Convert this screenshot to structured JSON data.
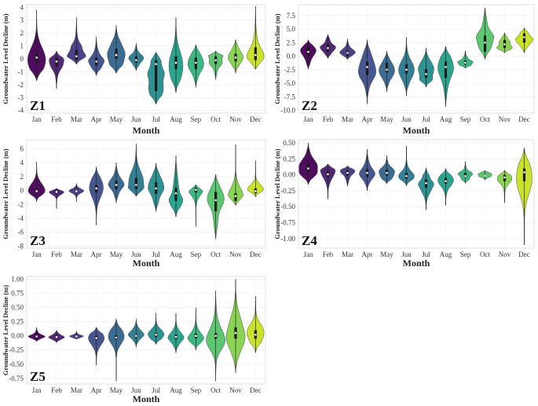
{
  "chart_data": [
    {
      "type": "violin",
      "zone": "Z1",
      "xlabel": "Month",
      "ylabel": "Groundwater Level Decline (m)",
      "categories": [
        "Jan",
        "Feb",
        "Mar",
        "Apr",
        "May",
        "Jun",
        "Jul",
        "Aug",
        "Sep",
        "Oct",
        "Nov",
        "Dec"
      ],
      "yticks": [
        "-4",
        "-3",
        "-2",
        "-1",
        "0",
        "1",
        "2",
        "3",
        "4"
      ],
      "ylim": [
        -4.2,
        4.2
      ],
      "series": [
        {
          "month": "Jan",
          "min": -1.7,
          "max": 3.8,
          "median": 0.1,
          "q1": -0.3,
          "q3": 0.4,
          "width": 0.9
        },
        {
          "month": "Feb",
          "min": -2.3,
          "max": 0.6,
          "median": -0.2,
          "q1": -0.6,
          "q3": 0.1,
          "width": 0.75
        },
        {
          "month": "Mar",
          "min": -0.4,
          "max": 3.2,
          "median": 0.2,
          "q1": -0.1,
          "q3": 0.7,
          "width": 0.95
        },
        {
          "month": "Apr",
          "min": -1.3,
          "max": 1.7,
          "median": -0.2,
          "q1": -0.5,
          "q3": 0.1,
          "width": 0.8
        },
        {
          "month": "May",
          "min": -1.1,
          "max": 2.6,
          "median": 0.3,
          "q1": 0.0,
          "q3": 0.8,
          "width": 0.9
        },
        {
          "month": "Jun",
          "min": -0.9,
          "max": 1.2,
          "median": -0.1,
          "q1": -0.3,
          "q3": 0.2,
          "width": 0.75
        },
        {
          "month": "Jul",
          "min": -3.5,
          "max": 0.5,
          "median": -0.4,
          "q1": -2.5,
          "q3": -0.1,
          "width": 0.85
        },
        {
          "month": "Aug",
          "min": -2.6,
          "max": 3.2,
          "median": -0.3,
          "q1": -0.8,
          "q3": 0.2,
          "width": 0.7
        },
        {
          "month": "Sep",
          "min": -2.2,
          "max": 1.1,
          "median": -0.3,
          "q1": -0.8,
          "q3": 0.1,
          "width": 0.8
        },
        {
          "month": "Oct",
          "min": -1.6,
          "max": 0.6,
          "median": -0.1,
          "q1": -0.4,
          "q3": 0.2,
          "width": 0.75
        },
        {
          "month": "Nov",
          "min": -1.1,
          "max": 1.5,
          "median": 0.1,
          "q1": -0.2,
          "q3": 0.4,
          "width": 0.75
        },
        {
          "month": "Dec",
          "min": -0.8,
          "max": 4.1,
          "median": 0.3,
          "q1": -0.1,
          "q3": 0.9,
          "width": 0.85
        }
      ]
    },
    {
      "type": "violin",
      "zone": "Z2",
      "xlabel": "Month",
      "ylabel": "Groundwater Level Decline (m)",
      "categories": [
        "Jan",
        "Feb",
        "Mar",
        "Apr",
        "May",
        "Jun",
        "Jul",
        "Aug",
        "Sep",
        "Oct",
        "Nov",
        "Dec"
      ],
      "yticks": [
        "-10.0",
        "-7.5",
        "-5.0",
        "-2.5",
        "0.0",
        "2.5",
        "5.0",
        "7.5"
      ],
      "ylim": [
        -10.5,
        9.5
      ],
      "series": [
        {
          "month": "Jan",
          "min": -2.4,
          "max": 3.0,
          "median": 0.8,
          "q1": 0.0,
          "q3": 1.8,
          "width": 0.8
        },
        {
          "month": "Feb",
          "min": -0.4,
          "max": 4.0,
          "median": 1.5,
          "q1": 0.8,
          "q3": 2.2,
          "width": 0.8
        },
        {
          "month": "Mar",
          "min": -0.6,
          "max": 3.2,
          "median": 0.6,
          "q1": 0.0,
          "q3": 1.0,
          "width": 0.8
        },
        {
          "month": "Apr",
          "min": -8.8,
          "max": 3.0,
          "median": -2.0,
          "q1": -3.5,
          "q3": -1.0,
          "width": 0.9
        },
        {
          "month": "May",
          "min": -6.6,
          "max": 0.9,
          "median": -2.5,
          "q1": -3.0,
          "q3": -1.2,
          "width": 0.8
        },
        {
          "month": "Jun",
          "min": -7.3,
          "max": 3.5,
          "median": -2.5,
          "q1": -3.2,
          "q3": -1.5,
          "width": 0.8
        },
        {
          "month": "Jul",
          "min": -5.7,
          "max": 1.5,
          "median": -3.3,
          "q1": -4.0,
          "q3": -2.4,
          "width": 0.8
        },
        {
          "month": "Aug",
          "min": -9.3,
          "max": 1.8,
          "median": -2.0,
          "q1": -4.0,
          "q3": -1.0,
          "width": 0.8
        },
        {
          "month": "Sep",
          "min": -2.2,
          "max": 1.0,
          "median": -1.2,
          "q1": -1.5,
          "q3": -0.8,
          "width": 0.8
        },
        {
          "month": "Oct",
          "min": -0.5,
          "max": 8.9,
          "median": 2.5,
          "q1": 0.8,
          "q3": 3.8,
          "width": 0.9
        },
        {
          "month": "Nov",
          "min": 0.6,
          "max": 4.3,
          "median": 2.2,
          "q1": 1.5,
          "q3": 3.0,
          "width": 0.8
        },
        {
          "month": "Dec",
          "min": 0.6,
          "max": 5.2,
          "median": 3.5,
          "q1": 2.5,
          "q3": 4.2,
          "width": 0.9
        }
      ]
    },
    {
      "type": "violin",
      "zone": "Z3",
      "xlabel": "Month",
      "ylabel": "Groundwater Level Decline (m)",
      "categories": [
        "Jan",
        "Feb",
        "Mar",
        "Apr",
        "May",
        "Jun",
        "Jul",
        "Aug",
        "Sep",
        "Oct",
        "Nov",
        "Dec"
      ],
      "yticks": [
        "-8",
        "-6",
        "-4",
        "-2",
        "0",
        "2",
        "4",
        "6"
      ],
      "ylim": [
        -8.3,
        7.3
      ],
      "series": [
        {
          "month": "Jan",
          "min": -1.6,
          "max": 4.1,
          "median": -0.1,
          "q1": -0.3,
          "q3": 0.2,
          "width": 0.85
        },
        {
          "month": "Feb",
          "min": -2.6,
          "max": 0.3,
          "median": -0.2,
          "q1": -0.3,
          "q3": 0.0,
          "width": 0.75
        },
        {
          "month": "Mar",
          "min": -1.6,
          "max": 1.0,
          "median": -0.1,
          "q1": -0.2,
          "q3": 0.1,
          "width": 0.75
        },
        {
          "month": "Apr",
          "min": -5.0,
          "max": 3.4,
          "median": 0.3,
          "q1": -0.3,
          "q3": 0.8,
          "width": 0.7
        },
        {
          "month": "May",
          "min": -1.8,
          "max": 4.0,
          "median": 0.8,
          "q1": 0.2,
          "q3": 1.4,
          "width": 0.8
        },
        {
          "month": "Jun",
          "min": -0.8,
          "max": 6.7,
          "median": 0.8,
          "q1": 0.2,
          "q3": 1.8,
          "width": 0.8
        },
        {
          "month": "Jul",
          "min": -3.0,
          "max": 3.9,
          "median": 0.3,
          "q1": -0.5,
          "q3": 1.2,
          "width": 0.8
        },
        {
          "month": "Aug",
          "min": -3.8,
          "max": 5.0,
          "median": -0.4,
          "q1": -1.5,
          "q3": 0.4,
          "width": 0.7
        },
        {
          "month": "Sep",
          "min": -5.2,
          "max": 0.8,
          "median": 0.1,
          "q1": -0.3,
          "q3": 0.4,
          "width": 0.7
        },
        {
          "month": "Oct",
          "min": -7.0,
          "max": 2.3,
          "median": -1.4,
          "q1": -3.0,
          "q3": -0.2,
          "width": 0.85
        },
        {
          "month": "Nov",
          "min": -2.1,
          "max": 6.6,
          "median": -0.8,
          "q1": -1.5,
          "q3": -0.4,
          "width": 0.75
        },
        {
          "month": "Dec",
          "min": -0.9,
          "max": 4.3,
          "median": -0.1,
          "q1": -0.4,
          "q3": 0.3,
          "width": 0.8
        }
      ]
    },
    {
      "type": "violin",
      "zone": "Z4",
      "xlabel": "Month",
      "ylabel": "Groundwater Level Decline (m)",
      "categories": [
        "Jan",
        "Feb",
        "Mar",
        "Apr",
        "May",
        "Jun",
        "Jul",
        "Aug",
        "Sep",
        "Oct",
        "Nov",
        "Dec"
      ],
      "yticks": [
        "-1.00",
        "-0.75",
        "-0.50",
        "-0.25",
        "0.00",
        "0.25",
        "0.50"
      ],
      "ylim": [
        -1.15,
        0.55
      ],
      "series": [
        {
          "month": "Jan",
          "min": -0.15,
          "max": 0.5,
          "median": 0.1,
          "q1": 0.03,
          "q3": 0.18,
          "width": 0.95
        },
        {
          "month": "Feb",
          "min": -0.38,
          "max": 0.17,
          "median": 0.01,
          "q1": -0.03,
          "q3": 0.06,
          "width": 0.75
        },
        {
          "month": "Mar",
          "min": -0.18,
          "max": 0.14,
          "median": 0.03,
          "q1": -0.01,
          "q3": 0.07,
          "width": 0.75
        },
        {
          "month": "Apr",
          "min": -0.25,
          "max": 0.4,
          "median": 0.03,
          "q1": -0.03,
          "q3": 0.09,
          "width": 0.8
        },
        {
          "month": "May",
          "min": -0.14,
          "max": 0.3,
          "median": 0.03,
          "q1": -0.01,
          "q3": 0.08,
          "width": 0.8
        },
        {
          "month": "Jun",
          "min": -0.17,
          "max": 0.45,
          "median": -0.02,
          "q1": -0.06,
          "q3": 0.03,
          "width": 0.8
        },
        {
          "month": "Jul",
          "min": -0.55,
          "max": 0.11,
          "median": -0.13,
          "q1": -0.2,
          "q3": -0.07,
          "width": 0.8
        },
        {
          "month": "Aug",
          "min": -0.48,
          "max": 0.1,
          "median": -0.1,
          "q1": -0.14,
          "q3": -0.05,
          "width": 0.8
        },
        {
          "month": "Sep",
          "min": -0.13,
          "max": 0.21,
          "median": -0.02,
          "q1": -0.04,
          "q3": 0.03,
          "width": 0.75
        },
        {
          "month": "Oct",
          "min": -0.08,
          "max": 0.07,
          "median": -0.01,
          "q1": -0.02,
          "q3": 0.01,
          "width": 0.7
        },
        {
          "month": "Nov",
          "min": -0.44,
          "max": 0.07,
          "median": -0.04,
          "q1": -0.1,
          "q3": 0.0,
          "width": 0.75
        },
        {
          "month": "Dec",
          "min": -1.1,
          "max": 0.42,
          "median": 0.04,
          "q1": -0.1,
          "q3": 0.1,
          "width": 0.8
        }
      ]
    },
    {
      "type": "violin",
      "zone": "Z5",
      "xlabel": "Month",
      "ylabel": "Groundwater Level Decline (m)",
      "categories": [
        "Jan",
        "Feb",
        "Mar",
        "Apr",
        "May",
        "Jun",
        "Jul",
        "Aug",
        "Sep",
        "Oct",
        "Nov",
        "Dec"
      ],
      "yticks": [
        "-0.75",
        "-0.50",
        "-0.25",
        "0.00",
        "0.25",
        "0.50",
        "0.75",
        "1.00"
      ],
      "ylim": [
        -0.85,
        1.05
      ],
      "series": [
        {
          "month": "Jan",
          "min": -0.1,
          "max": 0.15,
          "median": -0.01,
          "q1": -0.03,
          "q3": 0.02,
          "width": 0.85
        },
        {
          "month": "Feb",
          "min": -0.12,
          "max": 0.1,
          "median": -0.02,
          "q1": -0.04,
          "q3": 0.01,
          "width": 0.8
        },
        {
          "month": "Mar",
          "min": -0.06,
          "max": 0.08,
          "median": -0.01,
          "q1": -0.02,
          "q3": 0.01,
          "width": 0.7
        },
        {
          "month": "Apr",
          "min": -0.52,
          "max": 0.15,
          "median": -0.04,
          "q1": -0.07,
          "q3": 0.0,
          "width": 0.8
        },
        {
          "month": "May",
          "min": -0.8,
          "max": 0.3,
          "median": -0.03,
          "q1": -0.06,
          "q3": 0.01,
          "width": 0.8
        },
        {
          "month": "Jun",
          "min": -0.2,
          "max": 0.3,
          "median": 0.0,
          "q1": -0.03,
          "q3": 0.03,
          "width": 0.8
        },
        {
          "month": "Jul",
          "min": -0.15,
          "max": 0.4,
          "median": 0.02,
          "q1": -0.02,
          "q3": 0.05,
          "width": 0.8
        },
        {
          "month": "Aug",
          "min": -0.3,
          "max": 0.4,
          "median": -0.02,
          "q1": -0.06,
          "q3": 0.02,
          "width": 0.8
        },
        {
          "month": "Sep",
          "min": -0.25,
          "max": 0.5,
          "median": 0.0,
          "q1": -0.04,
          "q3": 0.04,
          "width": 0.8
        },
        {
          "month": "Oct",
          "min": -0.8,
          "max": 0.8,
          "median": 0.0,
          "q1": -0.05,
          "q3": 0.05,
          "width": 0.95
        },
        {
          "month": "Nov",
          "min": -0.65,
          "max": 1.0,
          "median": 0.05,
          "q1": -0.05,
          "q3": 0.15,
          "width": 0.95
        },
        {
          "month": "Dec",
          "min": -0.3,
          "max": 0.7,
          "median": 0.02,
          "q1": -0.05,
          "q3": 0.1,
          "width": 0.85
        }
      ]
    }
  ],
  "palette": [
    "#440154",
    "#482878",
    "#3e4989",
    "#31688e",
    "#26828e",
    "#1f9e89",
    "#35b779",
    "#6ece58",
    "#b5de2b",
    "#fde725"
  ]
}
